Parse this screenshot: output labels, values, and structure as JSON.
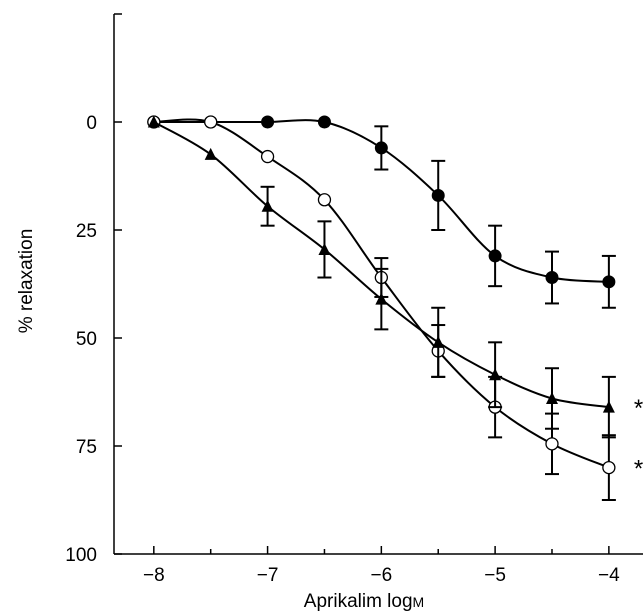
{
  "chart_data": {
    "type": "line",
    "xlabel": "Aprikalim log",
    "xlabel_unit": "M",
    "ylabel": "% relaxation",
    "xlim": [
      -8.35,
      -3.7
    ],
    "ylim": [
      -25,
      100
    ],
    "y_inverted": true,
    "x_ticks": [
      -8,
      -7,
      -6,
      -5,
      -4
    ],
    "x_tick_labels": [
      "−8",
      "−7",
      "−6",
      "−5",
      "−4"
    ],
    "y_ticks": [
      0,
      25,
      50,
      75,
      100
    ],
    "y_tick_labels": [
      "0",
      "25",
      "50",
      "75",
      "100"
    ],
    "grid": false,
    "legend": "none",
    "series": [
      {
        "marker": "filled-circle",
        "color": "#000000",
        "x": [
          -8,
          -7.5,
          -7,
          -6.5,
          -6,
          -5.5,
          -5,
          -4.5,
          -4
        ],
        "y": [
          0,
          0,
          0,
          0,
          6,
          17,
          31,
          36,
          37
        ],
        "error": [
          0,
          0,
          0,
          0,
          5,
          8,
          7,
          6,
          6
        ],
        "annotation": ""
      },
      {
        "marker": "open-circle",
        "color": "#000000",
        "x": [
          -8,
          -7.5,
          -7,
          -6.5,
          -6,
          -5.5,
          -5,
          -4.5,
          -4
        ],
        "y": [
          0,
          0,
          8,
          18,
          36,
          53,
          66,
          74.5,
          80
        ],
        "error": [
          0,
          0,
          0,
          0,
          4.5,
          6,
          7,
          7,
          7.5
        ],
        "annotation": "**"
      },
      {
        "marker": "filled-triangle",
        "color": "#000000",
        "x": [
          -8,
          -7.5,
          -7,
          -6.5,
          -6,
          -5.5,
          -5,
          -4.5,
          -4
        ],
        "y": [
          0,
          7.5,
          19.5,
          29.5,
          41,
          51,
          58.5,
          64,
          66
        ],
        "error": [
          0,
          0,
          4.5,
          6.5,
          7,
          8,
          7.5,
          7,
          7
        ],
        "annotation": "*"
      }
    ]
  }
}
